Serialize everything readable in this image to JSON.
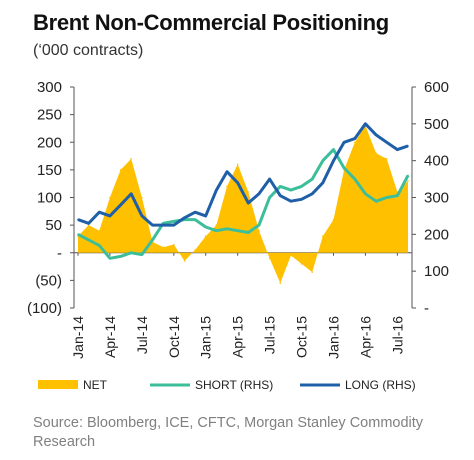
{
  "title": "Brent Non-Commercial Positioning",
  "subtitle": "(‘000 contracts)",
  "source": "Source: Bloomberg, ICE,  CFTC, Morgan Stanley Commodity Research",
  "chart_data": {
    "type": "area",
    "x": [
      "2014-01",
      "2014-02",
      "2014-03",
      "2014-04",
      "2014-05",
      "2014-06",
      "2014-07",
      "2014-08",
      "2014-09",
      "2014-10",
      "2014-11",
      "2014-12",
      "2015-01",
      "2015-02",
      "2015-03",
      "2015-04",
      "2015-05",
      "2015-06",
      "2015-07",
      "2015-08",
      "2015-09",
      "2015-10",
      "2015-11",
      "2015-12",
      "2016-01",
      "2016-02",
      "2016-03",
      "2016-04",
      "2016-05",
      "2016-06",
      "2016-07",
      "2016-08"
    ],
    "x_tick_labels": [
      "Jan-14",
      "Apr-14",
      "Jul-14",
      "Oct-14",
      "Jan-15",
      "Apr-15",
      "Jul-15",
      "Oct-15",
      "Jan-16",
      "Apr-16",
      "Jul-16"
    ],
    "y_left": {
      "ticks": [
        "300",
        "250",
        "200",
        "150",
        "100",
        "50",
        "-",
        "(50)",
        "(100)"
      ],
      "range": [
        -100,
        300
      ]
    },
    "y_right": {
      "ticks": [
        "600",
        "500",
        "400",
        "300",
        "200",
        "100",
        "-"
      ],
      "range": [
        0,
        600
      ]
    },
    "series": [
      {
        "name": "NET",
        "axis": "left",
        "kind": "area",
        "color": "#FFC000",
        "values": [
          30,
          50,
          40,
          100,
          150,
          170,
          100,
          20,
          10,
          15,
          -15,
          5,
          30,
          50,
          120,
          160,
          110,
          40,
          -10,
          -55,
          -5,
          -20,
          -35,
          30,
          60,
          150,
          200,
          230,
          180,
          170,
          110,
          130
        ]
      },
      {
        "name": "SHORT (RHS)",
        "axis": "right",
        "kind": "line",
        "color": "#3DBE9A",
        "values": [
          200,
          185,
          170,
          135,
          140,
          150,
          145,
          185,
          230,
          235,
          240,
          240,
          220,
          210,
          215,
          210,
          205,
          225,
          300,
          330,
          320,
          330,
          350,
          400,
          430,
          380,
          350,
          310,
          290,
          300,
          305,
          360
        ]
      },
      {
        "name": "LONG (RHS)",
        "axis": "right",
        "kind": "line",
        "color": "#1F5FA8",
        "values": [
          240,
          230,
          260,
          250,
          280,
          310,
          250,
          225,
          225,
          225,
          245,
          260,
          250,
          320,
          370,
          340,
          285,
          310,
          350,
          305,
          290,
          295,
          310,
          340,
          400,
          450,
          460,
          500,
          470,
          450,
          430,
          440
        ]
      }
    ],
    "legend": [
      "NET",
      "SHORT (RHS)",
      "LONG (RHS)"
    ],
    "legend_position": "bottom",
    "grid": false
  }
}
